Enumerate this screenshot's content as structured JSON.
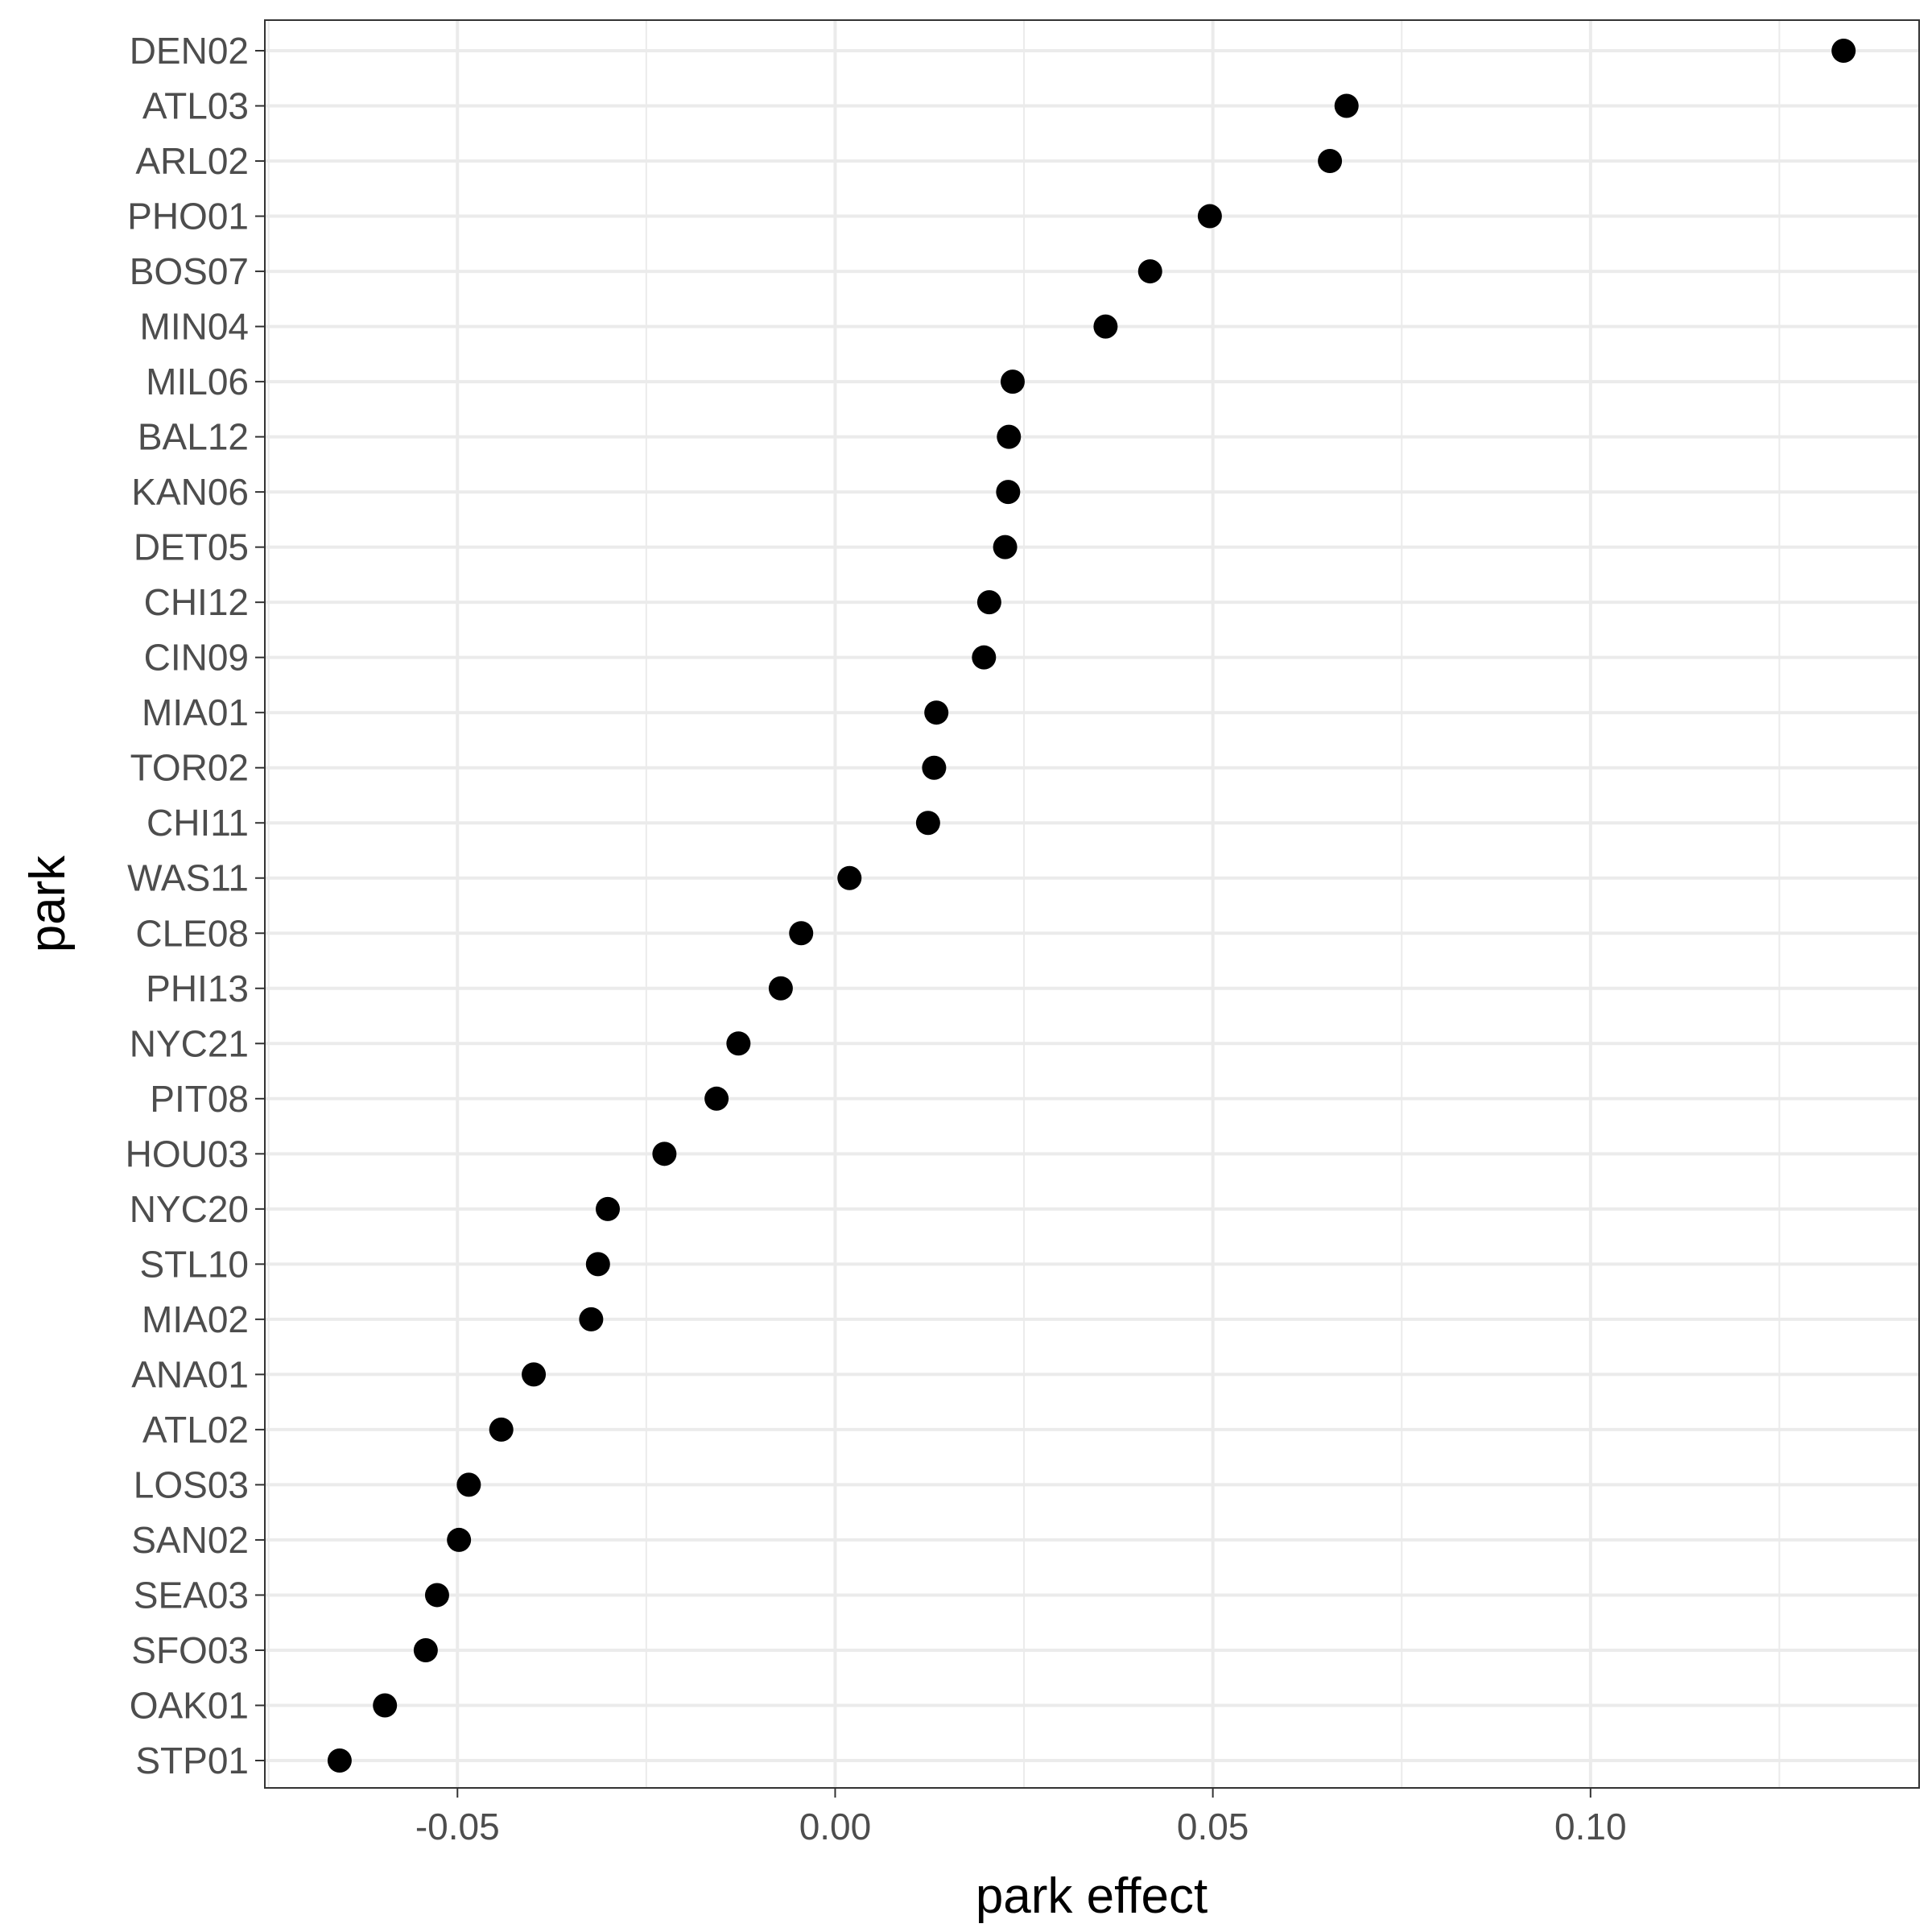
{
  "chart_data": {
    "type": "scatter",
    "xlabel": "park effect",
    "ylabel": "park",
    "xlim": [
      -0.0755,
      0.1435
    ],
    "x_ticks": [
      -0.05,
      0.0,
      0.05,
      0.1
    ],
    "x_tick_labels": [
      "-0.05",
      "0.00",
      "0.05",
      "0.10"
    ],
    "x_minor_ticks": [
      -0.075,
      -0.025,
      0.025,
      0.075,
      0.125
    ],
    "grid": true,
    "colors": {
      "point": "#000000",
      "grid": "#ebebeb",
      "border": "#333333",
      "tick_text": "#4d4d4d"
    },
    "points": [
      {
        "park": "DEN02",
        "x": 0.1335
      },
      {
        "park": "ATL03",
        "x": 0.0677
      },
      {
        "park": "ARL02",
        "x": 0.0655
      },
      {
        "park": "PHO01",
        "x": 0.0496
      },
      {
        "park": "BOS07",
        "x": 0.0417
      },
      {
        "park": "MIN04",
        "x": 0.0358
      },
      {
        "park": "MIL06",
        "x": 0.0235
      },
      {
        "park": "BAL12",
        "x": 0.023
      },
      {
        "park": "KAN06",
        "x": 0.0229
      },
      {
        "park": "DET05",
        "x": 0.0225
      },
      {
        "park": "CHI12",
        "x": 0.0204
      },
      {
        "park": "CIN09",
        "x": 0.0197
      },
      {
        "park": "MIA01",
        "x": 0.0134
      },
      {
        "park": "TOR02",
        "x": 0.0131
      },
      {
        "park": "CHI11",
        "x": 0.0123
      },
      {
        "park": "WAS11",
        "x": 0.0019
      },
      {
        "park": "CLE08",
        "x": -0.0045
      },
      {
        "park": "PHI13",
        "x": -0.0072
      },
      {
        "park": "NYC21",
        "x": -0.0128
      },
      {
        "park": "PIT08",
        "x": -0.0157
      },
      {
        "park": "HOU03",
        "x": -0.0226
      },
      {
        "park": "NYC20",
        "x": -0.0301
      },
      {
        "park": "STL10",
        "x": -0.0314
      },
      {
        "park": "MIA02",
        "x": -0.0323
      },
      {
        "park": "ANA01",
        "x": -0.0399
      },
      {
        "park": "ATL02",
        "x": -0.0442
      },
      {
        "park": "LOS03",
        "x": -0.0485
      },
      {
        "park": "SAN02",
        "x": -0.0498
      },
      {
        "park": "SEA03",
        "x": -0.0527
      },
      {
        "park": "SFO03",
        "x": -0.0542
      },
      {
        "park": "OAK01",
        "x": -0.0596
      },
      {
        "park": "STP01",
        "x": -0.0656
      }
    ]
  }
}
